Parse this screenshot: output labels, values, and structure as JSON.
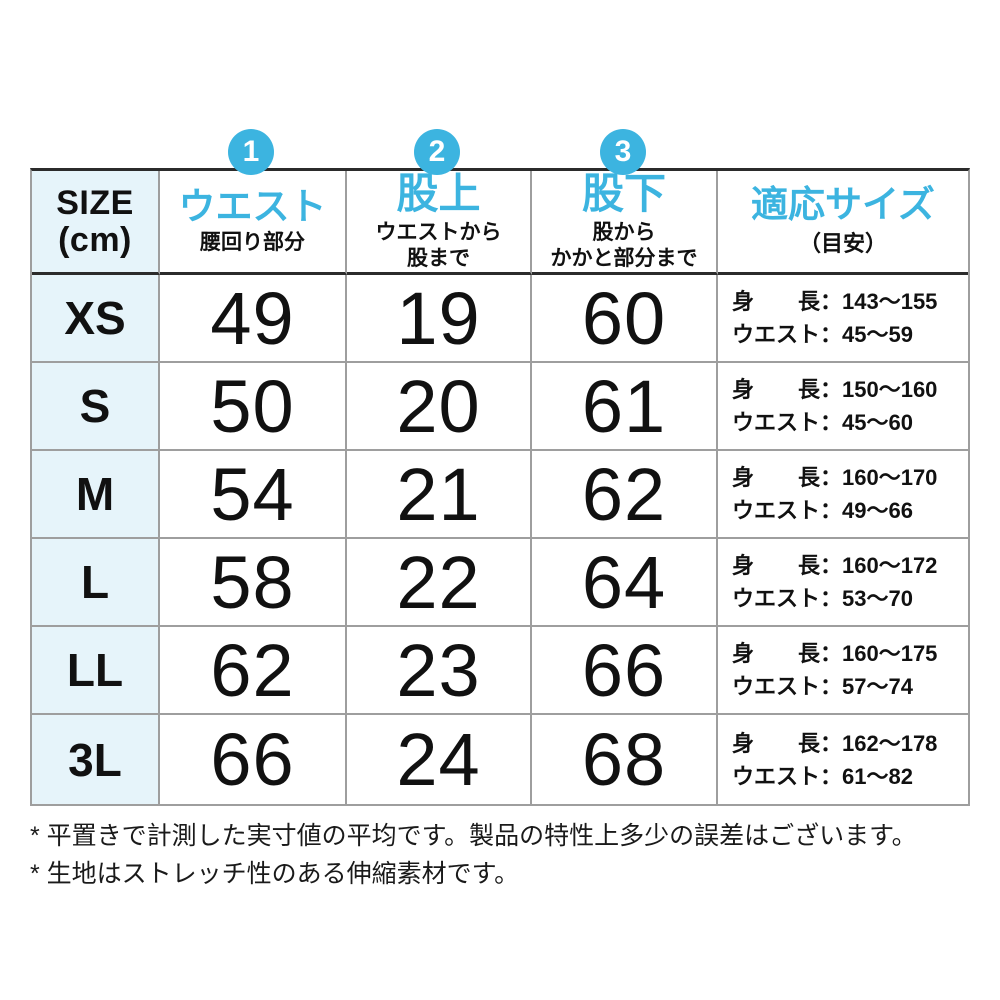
{
  "colors": {
    "accent": "#3CB4E0",
    "size_column_bg": "#E6F4FA",
    "grid_line": "#9E9E9E",
    "strong_line": "#2B2B2B",
    "text": "#111111"
  },
  "header": {
    "size": {
      "line1": "SIZE",
      "line2": "(cm)"
    },
    "columns": [
      {
        "badge": "1",
        "title": "ウエスト",
        "sub1": "腰回り部分",
        "sub2": ""
      },
      {
        "badge": "2",
        "title": "股上",
        "sub1": "ウエストから",
        "sub2": "股まで"
      },
      {
        "badge": "3",
        "title": "股下",
        "sub1": "股から",
        "sub2": "かかと部分まで"
      },
      {
        "title": "適応サイズ",
        "sub1": "（目安）",
        "sub2": ""
      }
    ]
  },
  "table": {
    "rows": [
      {
        "size": "XS",
        "waist": "49",
        "rise": "19",
        "inseam": "60",
        "fit_line1": "身　　長：143〜155",
        "fit_line2": "ウエスト：45〜59"
      },
      {
        "size": "S",
        "waist": "50",
        "rise": "20",
        "inseam": "61",
        "fit_line1": "身　　長：150〜160",
        "fit_line2": "ウエスト：45〜60"
      },
      {
        "size": "M",
        "waist": "54",
        "rise": "21",
        "inseam": "62",
        "fit_line1": "身　　長：160〜170",
        "fit_line2": "ウエスト：49〜66"
      },
      {
        "size": "L",
        "waist": "58",
        "rise": "22",
        "inseam": "64",
        "fit_line1": "身　　長：160〜172",
        "fit_line2": "ウエスト：53〜70"
      },
      {
        "size": "LL",
        "waist": "62",
        "rise": "23",
        "inseam": "66",
        "fit_line1": "身　　長：160〜175",
        "fit_line2": "ウエスト：57〜74"
      },
      {
        "size": "3L",
        "waist": "66",
        "rise": "24",
        "inseam": "68",
        "fit_line1": "身　　長：162〜178",
        "fit_line2": "ウエスト：61〜82"
      }
    ]
  },
  "notes": [
    "* 平置きで計測した実寸値の平均です。製品の特性上多少の誤差はございます。",
    "* 生地はストレッチ性のある伸縮素材です。"
  ]
}
